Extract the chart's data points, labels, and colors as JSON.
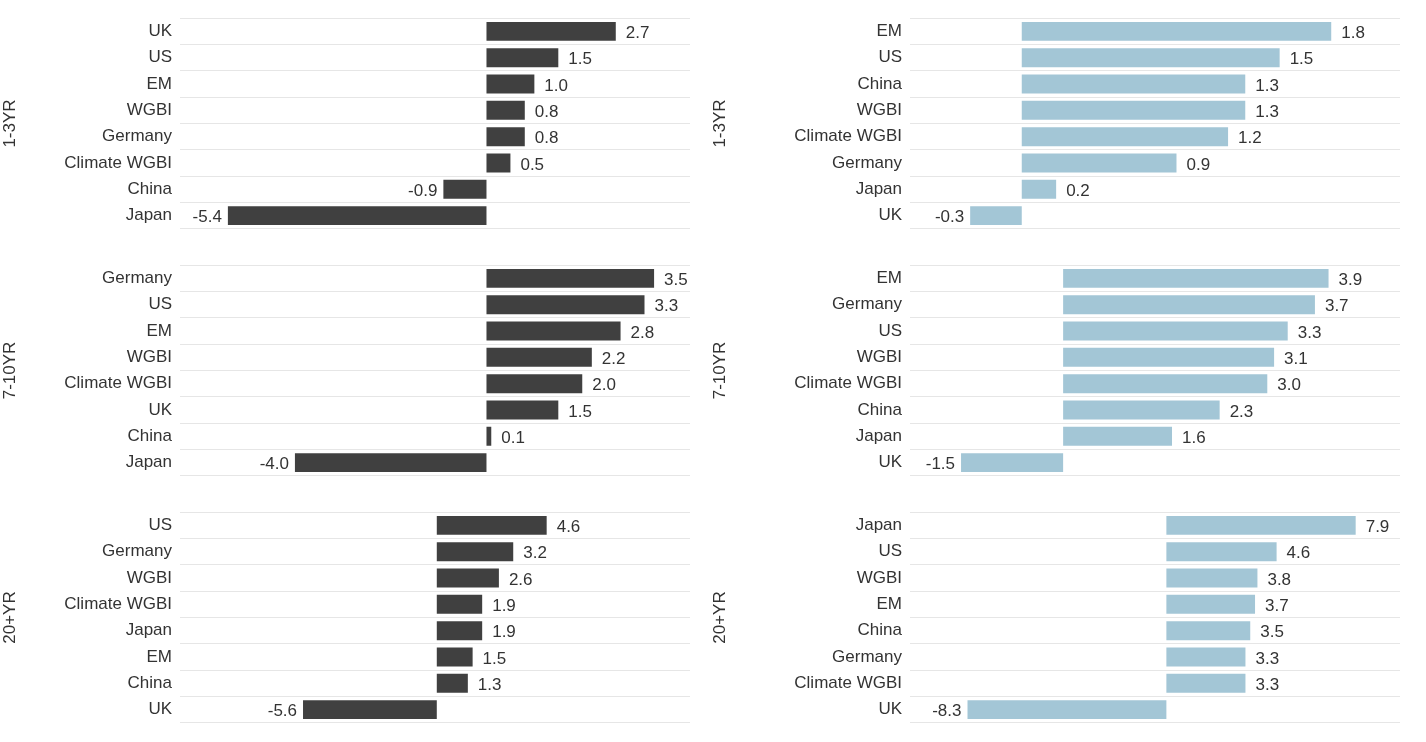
{
  "chart_data": [
    {
      "type": "bar",
      "orientation": "horizontal",
      "ylabel": "1-3YR",
      "categories": [
        "UK",
        "US",
        "EM",
        "WGBI",
        "Germany",
        "Climate WGBI",
        "China",
        "Japan"
      ],
      "values": [
        2.7,
        1.5,
        1.0,
        0.8,
        0.8,
        0.5,
        -0.9,
        -5.4
      ],
      "value_labels": [
        "2.7",
        "1.5",
        "1.0",
        "0.8",
        "0.8",
        "0.5",
        "-0.9",
        "-5.4"
      ],
      "color": "#404040",
      "xlim": [
        -6.4,
        4.25
      ],
      "tick_labels": "y",
      "grid": "y",
      "legend": false
    },
    {
      "type": "bar",
      "orientation": "horizontal",
      "ylabel": "1-3YR",
      "categories": [
        "EM",
        "US",
        "China",
        "WGBI",
        "Climate WGBI",
        "Germany",
        "Japan",
        "UK"
      ],
      "values": [
        1.8,
        1.5,
        1.3,
        1.3,
        1.2,
        0.9,
        0.2,
        -0.3
      ],
      "value_labels": [
        "1.8",
        "1.5",
        "1.3",
        "1.3",
        "1.2",
        "0.9",
        "0.2",
        "-0.3"
      ],
      "color": "#a3c6d6",
      "xlim": [
        -0.65,
        2.2
      ],
      "tick_labels": "y",
      "grid": "y",
      "legend": false
    },
    {
      "type": "bar",
      "orientation": "horizontal",
      "ylabel": "7-10YR",
      "categories": [
        "Germany",
        "US",
        "EM",
        "WGBI",
        "Climate WGBI",
        "UK",
        "China",
        "Japan"
      ],
      "values": [
        3.5,
        3.3,
        2.8,
        2.2,
        2.0,
        1.5,
        0.1,
        -4.0
      ],
      "value_labels": [
        "3.5",
        "3.3",
        "2.8",
        "2.2",
        "2.0",
        "1.5",
        "0.1",
        "-4.0"
      ],
      "color": "#404040",
      "xlim": [
        -6.4,
        4.25
      ],
      "tick_labels": "y",
      "grid": "y",
      "legend": false
    },
    {
      "type": "bar",
      "orientation": "horizontal",
      "ylabel": "7-10YR",
      "categories": [
        "EM",
        "Germany",
        "US",
        "WGBI",
        "Climate WGBI",
        "China",
        "Japan",
        "UK"
      ],
      "values": [
        3.9,
        3.7,
        3.3,
        3.1,
        3.0,
        2.3,
        1.6,
        -1.5
      ],
      "value_labels": [
        "3.9",
        "3.7",
        "3.3",
        "3.1",
        "3.0",
        "2.3",
        "1.6",
        "-1.5"
      ],
      "color": "#a3c6d6",
      "xlim": [
        -2.25,
        4.95
      ],
      "tick_labels": "y",
      "grid": "y",
      "legend": false
    },
    {
      "type": "bar",
      "orientation": "horizontal",
      "ylabel": "20+YR",
      "categories": [
        "US",
        "Germany",
        "WGBI",
        "Climate WGBI",
        "Japan",
        "EM",
        "China",
        "UK"
      ],
      "values": [
        4.6,
        3.2,
        2.6,
        1.9,
        1.9,
        1.5,
        1.3,
        -5.6
      ],
      "value_labels": [
        "4.6",
        "3.2",
        "2.6",
        "1.9",
        "1.9",
        "1.5",
        "1.3",
        "-5.6"
      ],
      "color": "#404040",
      "xlim": [
        -10.75,
        10.6
      ],
      "tick_labels": "y",
      "grid": "y",
      "legend": false
    },
    {
      "type": "bar",
      "orientation": "horizontal",
      "ylabel": "20+YR",
      "categories": [
        "Japan",
        "US",
        "WGBI",
        "EM",
        "China",
        "Germany",
        "Climate WGBI",
        "UK"
      ],
      "values": [
        7.9,
        4.6,
        3.8,
        3.7,
        3.5,
        3.3,
        3.3,
        -8.3
      ],
      "value_labels": [
        "7.9",
        "4.6",
        "3.8",
        "3.7",
        "3.5",
        "3.3",
        "3.3",
        "-8.3"
      ],
      "color": "#a3c6d6",
      "xlim": [
        -10.7,
        9.75
      ],
      "tick_labels": "y",
      "grid": "y",
      "legend": false
    }
  ]
}
